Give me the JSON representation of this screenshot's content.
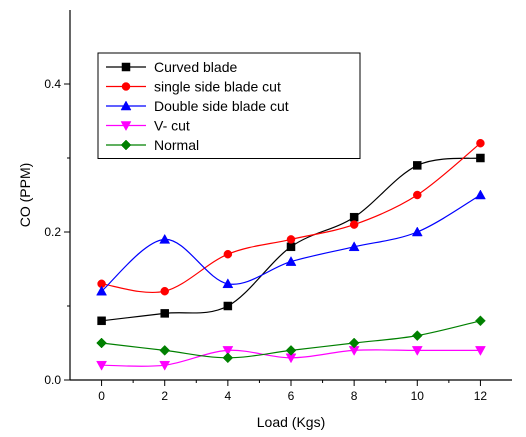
{
  "chart_data": {
    "type": "line",
    "xlabel": "Load (Kgs)",
    "ylabel": "CO (PPM)",
    "xlim": [
      -1,
      13
    ],
    "ylim": [
      0.0,
      0.5
    ],
    "x": [
      0,
      2,
      4,
      6,
      8,
      10,
      12
    ],
    "x_ticks": [
      0,
      2,
      4,
      6,
      8,
      10,
      12
    ],
    "y_ticks": [
      0.0,
      0.2,
      0.4
    ],
    "x_tick_labels": [
      "0",
      "2",
      "4",
      "6",
      "8",
      "10",
      "12"
    ],
    "y_tick_labels": [
      "0.0",
      "0.2",
      "0.4"
    ],
    "grid": false,
    "legend_position": "top-left",
    "series": [
      {
        "name": "Curved blade",
        "color": "#000000",
        "marker": "square",
        "values": [
          0.08,
          0.09,
          0.1,
          0.18,
          0.22,
          0.29,
          0.3
        ]
      },
      {
        "name": "single side blade cut",
        "color": "#ff0000",
        "marker": "circle",
        "values": [
          0.13,
          0.12,
          0.17,
          0.19,
          0.21,
          0.25,
          0.32
        ]
      },
      {
        "name": "Double side blade cut",
        "color": "#0000ff",
        "marker": "triangle-up",
        "values": [
          0.12,
          0.19,
          0.13,
          0.16,
          0.18,
          0.2,
          0.25
        ]
      },
      {
        "name": "V- cut",
        "color": "#ff00ff",
        "marker": "triangle-down",
        "values": [
          0.02,
          0.02,
          0.04,
          0.03,
          0.04,
          0.04,
          0.04
        ]
      },
      {
        "name": "Normal",
        "color": "#008000",
        "marker": "diamond",
        "values": [
          0.05,
          0.04,
          0.03,
          0.04,
          0.05,
          0.06,
          0.08
        ]
      }
    ]
  }
}
